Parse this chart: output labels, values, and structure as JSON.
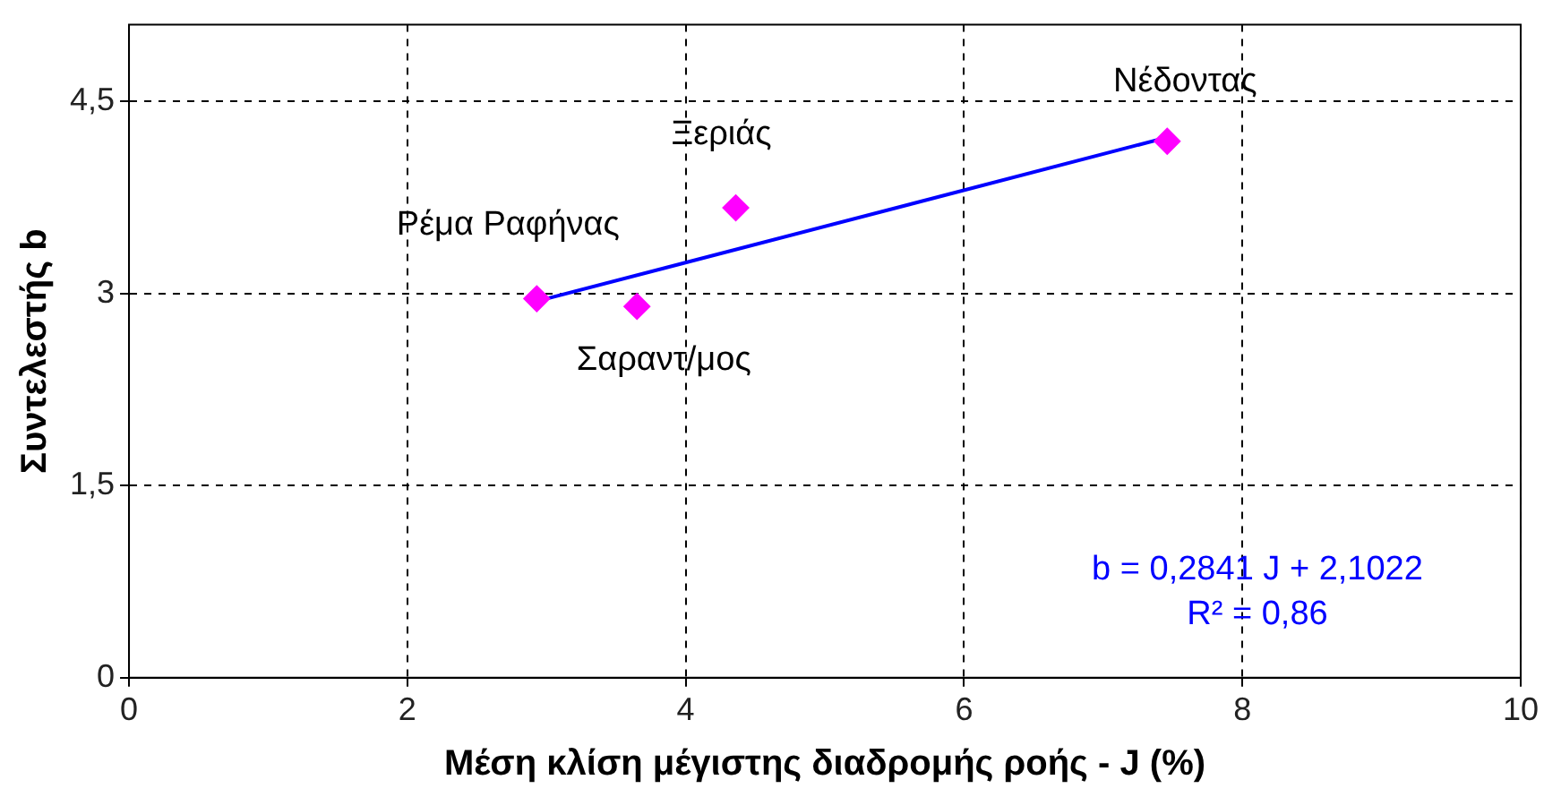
{
  "chart_data": {
    "type": "scatter",
    "xlabel": "Μέση κλίση μέγιστης διαδρομής ροής - J (%)",
    "ylabel": "Συντελεστής b",
    "xlim": [
      0,
      10
    ],
    "xticks": [
      0,
      2,
      4,
      6,
      8,
      10
    ],
    "ylim": [
      0,
      5.1
    ],
    "yticks": [
      0,
      {
        "value": 1.5,
        "label": "1,5"
      },
      3,
      {
        "value": 4.5,
        "label": "4,5"
      }
    ],
    "grid": true,
    "legend": false,
    "marker": "diamond",
    "series": [
      {
        "type": "scatter",
        "color": "#ff00ff",
        "x": [
          2.93,
          3.65,
          4.36,
          7.46
        ],
        "values": [
          2.96,
          2.9,
          3.67,
          4.19
        ]
      },
      {
        "type": "line",
        "color": "#0000ff",
        "marker": "none",
        "x": [
          2.93,
          7.46
        ],
        "values": [
          2.94,
          4.22
        ]
      }
    ],
    "annotations": [
      {
        "text": "Ρέμα Ραφήνας",
        "x": 2.93,
        "y": 2.96
      },
      {
        "text": "Σαραντ/μος",
        "x": 3.65,
        "y": 2.9
      },
      {
        "text": "Ξεριάς",
        "x": 4.36,
        "y": 3.67
      },
      {
        "text": "Νέδοντας",
        "x": 7.46,
        "y": 4.19
      },
      "b = 0,2841 J + 2,1022",
      "R² = 0,86"
    ]
  }
}
